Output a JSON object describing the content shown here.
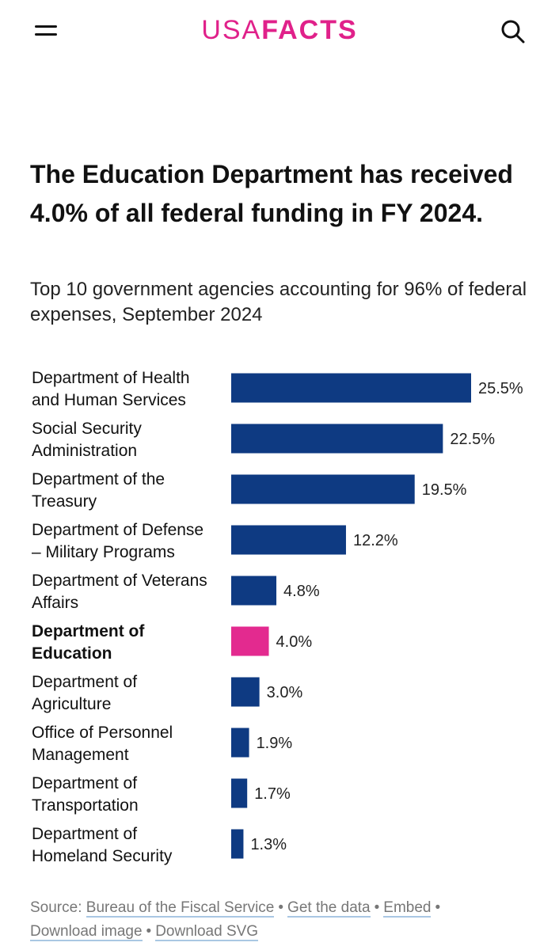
{
  "header": {
    "logo_usa": "USA",
    "logo_facts": "FACTS",
    "menu_icon": "hamburger-menu-icon",
    "search_icon": "search-icon",
    "brand_color": "#e0218a"
  },
  "title": "The Education Department has received 4.0% of all federal funding in FY 2024.",
  "subtitle": "Top 10 government agencies accounting for 96% of federal expenses, September 2024",
  "chart_data": {
    "type": "bar",
    "orientation": "horizontal",
    "categories": [
      [
        "Department of Health",
        "and Human Services"
      ],
      [
        "Social Security",
        "Administration"
      ],
      [
        "Department of the",
        "Treasury"
      ],
      [
        "Department of Defense",
        "– Military Programs"
      ],
      [
        "Department of Veterans",
        "Affairs"
      ],
      [
        "Department of",
        "Education"
      ],
      [
        "Department of",
        "Agriculture"
      ],
      [
        "Office of Personnel",
        "Management"
      ],
      [
        "Department of",
        "Transportation"
      ],
      [
        "Department of",
        "Homeland Security"
      ]
    ],
    "values": [
      25.5,
      22.5,
      19.5,
      12.2,
      4.8,
      4.0,
      3.0,
      1.9,
      1.7,
      1.3
    ],
    "value_labels": [
      "25.5%",
      "22.5%",
      "19.5%",
      "12.2%",
      "4.8%",
      "4.0%",
      "3.0%",
      "1.9%",
      "1.7%",
      "1.3%"
    ],
    "highlight_index": 5,
    "colors": {
      "bar": "#0e3a82",
      "highlight": "#e32a8f"
    },
    "xlim": [
      0,
      25.5
    ],
    "grid": false,
    "legend": "none"
  },
  "footer": {
    "source_prefix": "Source:",
    "source_link": "Bureau of the Fiscal Service",
    "get_data": "Get the data",
    "embed": "Embed",
    "download_image": "Download image",
    "download_svg": "Download SVG",
    "separator": "•"
  }
}
